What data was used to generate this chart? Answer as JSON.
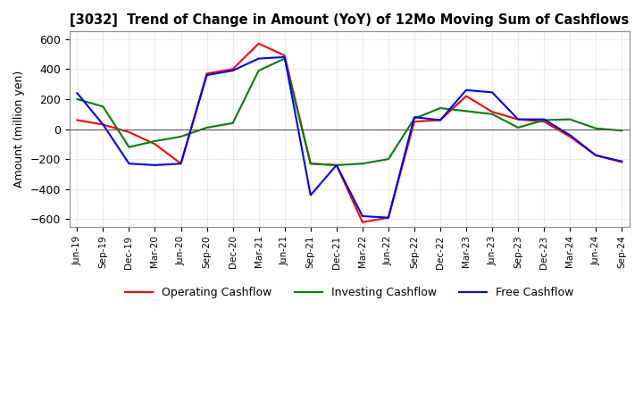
{
  "title": "[3032]  Trend of Change in Amount (YoY) of 12Mo Moving Sum of Cashflows",
  "ylabel": "Amount (million yen)",
  "ylim": [
    -650,
    650
  ],
  "yticks": [
    -600,
    -400,
    -200,
    0,
    200,
    400,
    600
  ],
  "x_labels": [
    "Jun-19",
    "Sep-19",
    "Dec-19",
    "Mar-20",
    "Jun-20",
    "Sep-20",
    "Dec-20",
    "Mar-21",
    "Jun-21",
    "Sep-21",
    "Dec-21",
    "Mar-22",
    "Jun-22",
    "Sep-22",
    "Dec-22",
    "Mar-23",
    "Jun-23",
    "Sep-23",
    "Dec-23",
    "Mar-24",
    "Jun-24",
    "Sep-24"
  ],
  "operating": [
    60,
    30,
    -20,
    -100,
    -230,
    370,
    400,
    570,
    490,
    -230,
    -240,
    -620,
    -590,
    50,
    60,
    220,
    115,
    65,
    50,
    -50,
    -175,
    -220
  ],
  "investing": [
    200,
    150,
    -120,
    -80,
    -50,
    10,
    40,
    390,
    470,
    -230,
    -240,
    -230,
    -200,
    70,
    140,
    120,
    100,
    10,
    60,
    65,
    5,
    -10
  ],
  "free": [
    240,
    30,
    -230,
    -240,
    -230,
    360,
    390,
    470,
    480,
    -440,
    -240,
    -580,
    -590,
    80,
    60,
    260,
    245,
    65,
    65,
    -40,
    -175,
    -215
  ],
  "operating_color": "#ff0000",
  "investing_color": "#008000",
  "free_color": "#0000ff",
  "background_color": "#ffffff",
  "grid_color": "#aaaaaa"
}
